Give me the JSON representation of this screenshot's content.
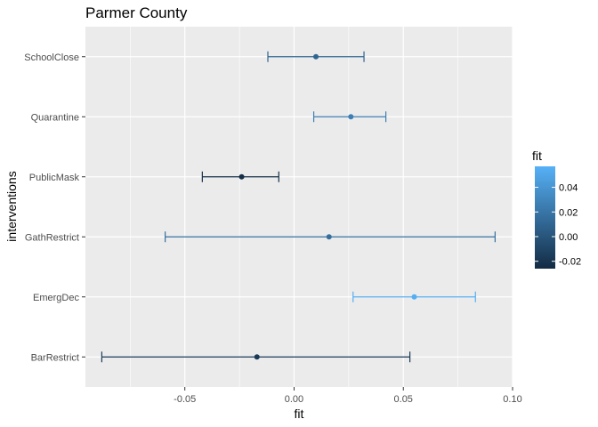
{
  "chart_data": {
    "type": "errorbar",
    "title": "Parmer County",
    "xlabel": "fit",
    "ylabel": "interventions",
    "xlim": [
      -0.0955,
      0.1
    ],
    "x_ticks": [
      -0.05,
      0.0,
      0.05,
      0.1
    ],
    "x_tick_labels": [
      "-0.05",
      "0.00",
      "0.05",
      "0.10"
    ],
    "grid": true,
    "categories": [
      "SchoolClose",
      "Quarantine",
      "PublicMask",
      "GathRestrict",
      "EmergDec",
      "BarRestrict"
    ],
    "points": [
      {
        "category": "SchoolClose",
        "fit": 0.01,
        "lower": -0.012,
        "upper": 0.032
      },
      {
        "category": "Quarantine",
        "fit": 0.026,
        "lower": 0.009,
        "upper": 0.042
      },
      {
        "category": "PublicMask",
        "fit": -0.024,
        "lower": -0.042,
        "upper": -0.007
      },
      {
        "category": "GathRestrict",
        "fit": 0.016,
        "lower": -0.059,
        "upper": 0.092
      },
      {
        "category": "EmergDec",
        "fit": 0.055,
        "lower": 0.027,
        "upper": 0.083
      },
      {
        "category": "BarRestrict",
        "fit": -0.017,
        "lower": -0.088,
        "upper": 0.053
      }
    ],
    "legend": {
      "title": "fit",
      "placement": "right",
      "range": [
        -0.026,
        0.057
      ],
      "ticks": [
        -0.02,
        0.0,
        0.02,
        0.04
      ],
      "tick_labels": [
        "-0.02",
        "0.00",
        "0.02",
        "0.04"
      ],
      "color_low": "#132B43",
      "color_high": "#56B1F7"
    },
    "panel_background": "#ebebeb",
    "grid_color": "#ffffff"
  }
}
